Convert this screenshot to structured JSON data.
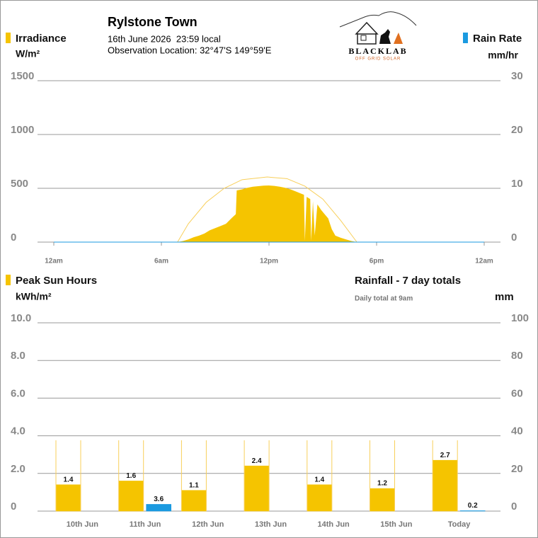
{
  "header": {
    "title": "Rylstone Town",
    "datetime": "16th June 2026  23:59 local",
    "location": "Observation Location: 32°47'S 149°59'E",
    "logo": {
      "name": "BLACKLAB",
      "tagline": "OFF GRID SOLAR"
    }
  },
  "chart_data": [
    {
      "type": "area",
      "y_label": "W/m²",
      "y2_label": "mm/hr",
      "xlim": [
        0,
        24
      ],
      "xticks": [
        {
          "value": 0,
          "label": "12am"
        },
        {
          "value": 6,
          "label": "6am"
        },
        {
          "value": 12,
          "label": "12pm"
        },
        {
          "value": 18,
          "label": "6pm"
        },
        {
          "value": 24,
          "label": "12am"
        }
      ],
      "ylim": [
        0,
        1500
      ],
      "yticks": [
        0,
        500,
        1000,
        1500
      ],
      "y2lim": [
        0,
        30
      ],
      "y2ticks": [
        0,
        10,
        20,
        30
      ],
      "grid": true,
      "series": [
        {
          "name": "Irradiance",
          "type": "area",
          "color": "#f5c400",
          "x": [
            6.9,
            7.2,
            7.5,
            7.8,
            8.1,
            8.4,
            8.7,
            9.0,
            9.3,
            9.6,
            9.9,
            10.15,
            10.2,
            10.5,
            10.8,
            11.1,
            11.4,
            11.7,
            12.0,
            12.3,
            12.6,
            12.9,
            13.2,
            13.5,
            13.8,
            13.95,
            14.0,
            14.1,
            14.3,
            14.35,
            14.45,
            14.55,
            14.7,
            14.9,
            15.1,
            15.3,
            15.5,
            15.7,
            16.0,
            16.3,
            16.6,
            16.9
          ],
          "values": [
            0,
            10,
            25,
            45,
            60,
            80,
            110,
            130,
            150,
            170,
            220,
            260,
            480,
            490,
            505,
            515,
            520,
            525,
            526,
            522,
            515,
            505,
            490,
            470,
            450,
            440,
            10,
            420,
            400,
            10,
            380,
            60,
            350,
            300,
            260,
            220,
            120,
            60,
            40,
            25,
            10,
            0
          ]
        },
        {
          "type": "line",
          "color": "#f8cf5a",
          "x": [
            6.9,
            7.5,
            8.5,
            9.5,
            10.5,
            11.9,
            13,
            14,
            15,
            16,
            16.9
          ],
          "values": [
            0,
            170,
            370,
            500,
            580,
            605,
            590,
            520,
            400,
            200,
            0
          ]
        },
        {
          "name": "Rain Rate",
          "type": "line",
          "axis": "y2",
          "color": "#1b9ae0",
          "x": [
            0,
            24
          ],
          "values": [
            0,
            0
          ]
        }
      ]
    },
    {
      "type": "bar",
      "y_label": "kWh/m²",
      "y2_label": "mm",
      "y2_note": "Daily total at 9am",
      "categories": [
        "10th Jun",
        "11th Jun",
        "12th Jun",
        "13th Jun",
        "14th Jun",
        "15th Jun",
        "Today"
      ],
      "ylim": [
        0,
        10
      ],
      "yticks": [
        0,
        {
          "value": 2,
          "label": "2.0"
        },
        {
          "value": 4,
          "label": "4.0"
        },
        {
          "value": 6,
          "label": "6.0"
        },
        {
          "value": 8,
          "label": "8.0"
        },
        {
          "value": 10,
          "label": "10.0"
        }
      ],
      "y2lim": [
        0,
        100
      ],
      "y2ticks": [
        0,
        20,
        40,
        60,
        80,
        100
      ],
      "grid": true,
      "series": [
        {
          "name": "Peak Sun Hours",
          "type": "bar",
          "color": "#f5c400",
          "values": [
            1.4,
            1.6,
            1.1,
            2.4,
            1.4,
            1.2,
            2.7
          ]
        },
        {
          "name": "Rainfall - 7 day totals",
          "type": "bar",
          "axis": "y2",
          "color": "#1b9ae0",
          "values": [
            0,
            3.6,
            0,
            0,
            0,
            0,
            0.2
          ]
        },
        {
          "type": "outline",
          "color": "#f8cf5a",
          "values": [
            3.76,
            3.76,
            3.76,
            3.76,
            3.76,
            3.76,
            3.76
          ]
        }
      ]
    }
  ]
}
